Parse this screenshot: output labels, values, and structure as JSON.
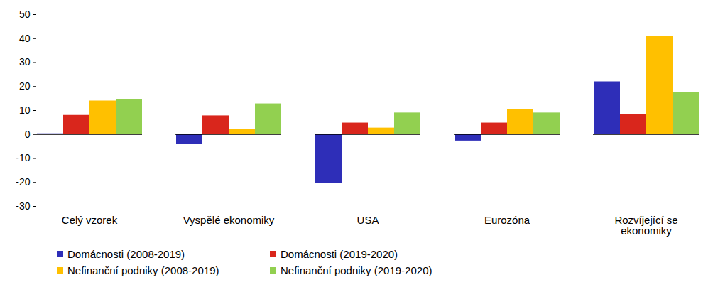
{
  "chart_data": {
    "type": "bar",
    "categories": [
      "Celý vzorek",
      "Vyspělé ekonomiky",
      "USA",
      "Eurozóna",
      "Rozvíjející se ekonomiky"
    ],
    "series": [
      {
        "name": "Domácnosti (2008-2019)",
        "color": "#2e2eb8",
        "values": [
          0.3,
          -4,
          -20.5,
          -2.7,
          22
        ]
      },
      {
        "name": "Domácnosti (2019-2020)",
        "color": "#d9261c",
        "values": [
          8,
          7.8,
          4.8,
          4.8,
          8.3
        ]
      },
      {
        "name": "Nefinanční podniky (2008-2019)",
        "color": "#ffc000",
        "values": [
          14,
          2,
          2.7,
          10.3,
          41
        ]
      },
      {
        "name": "Nefinanční podniky (2019-2020)",
        "color": "#92d050",
        "values": [
          14.5,
          12.8,
          9,
          9,
          17.5
        ]
      }
    ],
    "ylim": [
      -30,
      50
    ],
    "yticks": [
      -30,
      -20,
      -10,
      0,
      10,
      20,
      30,
      40,
      50
    ],
    "grid": false,
    "legend": "bottom"
  }
}
